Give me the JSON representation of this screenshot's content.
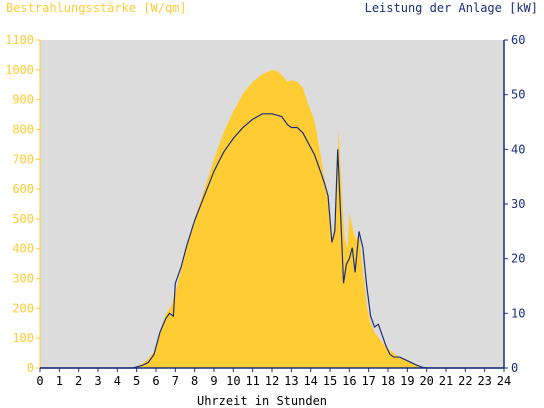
{
  "chart_data": {
    "type": "area",
    "ylabel_left": "Bestrahlungsstärke [W/qm]",
    "ylabel_right": "Leistung der Anlage [kW]",
    "xlabel": "Uhrzeit in Stunden",
    "xlim": [
      0,
      24
    ],
    "ylim_left": [
      0,
      1100
    ],
    "ylim_right": [
      0,
      60
    ],
    "x_ticks": [
      "0",
      "1",
      "2",
      "3",
      "4",
      "5",
      "6",
      "7",
      "8",
      "9",
      "10",
      "11",
      "12",
      "13",
      "14",
      "15",
      "16",
      "17",
      "18",
      "19",
      "20",
      "21",
      "22",
      "23",
      "24"
    ],
    "y_left_ticks": [
      "0",
      "100",
      "200",
      "300",
      "400",
      "500",
      "600",
      "700",
      "800",
      "900",
      "1000",
      "1100"
    ],
    "y_right_ticks": [
      "0",
      "10",
      "20",
      "30",
      "40",
      "50",
      "60"
    ],
    "colors": {
      "irradiance": "#ffcc33",
      "power": "#1a2f7a",
      "plot_background": "#dcdcdc",
      "left_axis": "#ffcc33",
      "right_axis": "#1a2f7a"
    },
    "series": [
      {
        "name": "Bestrahlungsstärke [W/qm]",
        "axis": "left",
        "style": "area",
        "x": [
          0,
          4.8,
          5.0,
          5.3,
          5.6,
          5.9,
          6.2,
          6.5,
          6.8,
          7.0,
          7.3,
          7.6,
          8.0,
          8.5,
          9.0,
          9.5,
          10.0,
          10.5,
          11.0,
          11.5,
          12.0,
          12.3,
          12.6,
          12.8,
          13.0,
          13.3,
          13.6,
          13.9,
          14.2,
          14.5,
          14.7,
          14.9,
          15.1,
          15.3,
          15.45,
          15.6,
          15.75,
          15.9,
          16.0,
          16.2,
          16.35,
          16.5,
          16.7,
          16.9,
          17.1,
          17.3,
          17.6,
          17.9,
          18.2,
          18.5,
          18.8,
          19.1,
          19.4,
          19.7,
          20.0,
          20.3,
          24
        ],
        "y": [
          0,
          0,
          5,
          15,
          30,
          55,
          120,
          180,
          210,
          250,
          330,
          410,
          500,
          600,
          700,
          790,
          860,
          920,
          960,
          985,
          1000,
          995,
          975,
          960,
          965,
          960,
          940,
          880,
          830,
          720,
          640,
          570,
          420,
          520,
          800,
          600,
          440,
          400,
          520,
          460,
          430,
          450,
          330,
          210,
          150,
          120,
          95,
          70,
          55,
          40,
          30,
          20,
          12,
          5,
          0,
          0,
          0
        ]
      },
      {
        "name": "Leistung der Anlage [kW]",
        "axis": "right",
        "style": "line",
        "x": [
          0,
          4.8,
          5.0,
          5.3,
          5.6,
          5.9,
          6.2,
          6.5,
          6.7,
          6.9,
          7.0,
          7.3,
          7.6,
          8.0,
          8.5,
          9.0,
          9.5,
          10.0,
          10.5,
          11.0,
          11.5,
          12.0,
          12.5,
          12.8,
          13.0,
          13.3,
          13.6,
          13.9,
          14.2,
          14.5,
          14.7,
          14.9,
          15.1,
          15.25,
          15.4,
          15.55,
          15.7,
          15.85,
          16.0,
          16.15,
          16.3,
          16.5,
          16.7,
          16.9,
          17.1,
          17.3,
          17.5,
          17.7,
          17.9,
          18.1,
          18.3,
          18.6,
          18.9,
          19.2,
          19.5,
          19.8,
          20.1,
          20.4,
          24
        ],
        "y": [
          0,
          0,
          0.2,
          0.5,
          1,
          2.5,
          6.5,
          9,
          10,
          9.5,
          15.5,
          18.5,
          22.5,
          27,
          31.5,
          36,
          39.5,
          42,
          44,
          45.5,
          46.5,
          46.5,
          46,
          44.5,
          44,
          44,
          43,
          41,
          39,
          36,
          34,
          31.5,
          23,
          25,
          40,
          28,
          15.5,
          19,
          20,
          22,
          17.5,
          25,
          22,
          15,
          9.5,
          7.5,
          8,
          6,
          4,
          2.5,
          2,
          2,
          1.5,
          1,
          0.5,
          0.1,
          0,
          0,
          0
        ]
      }
    ]
  }
}
